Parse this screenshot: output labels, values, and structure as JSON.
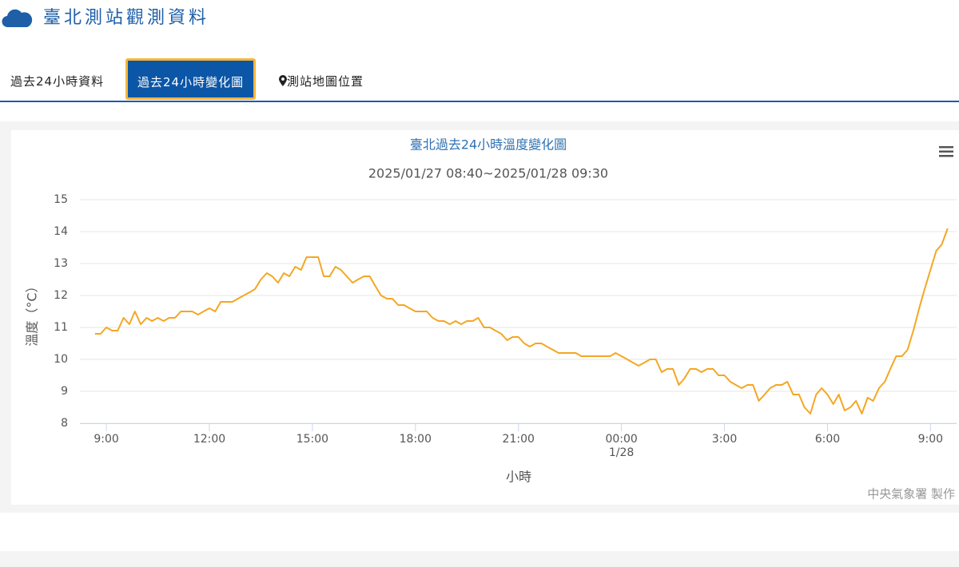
{
  "header": {
    "title": "臺北測站觀測資料"
  },
  "tabs": [
    "過去24小時資料",
    "過去24小時變化圖",
    "測站地圖位置"
  ],
  "chart_data": {
    "type": "line",
    "title": "臺北過去24小時溫度變化圖",
    "subtitle": "2025/01/27 08:40~2025/01/28 09:30",
    "x_label": "小時",
    "y_label": "溫度（°C）",
    "credits": "中央氣象署 製作",
    "color": "#f5a623",
    "grid": true,
    "xlim": [
      8.23,
      33.76
    ],
    "ylim": [
      8,
      15
    ],
    "yticks": [
      8,
      9,
      10,
      11,
      12,
      13,
      14,
      15
    ],
    "xticks": [
      {
        "value": 9,
        "label": "9:00"
      },
      {
        "value": 12,
        "label": "12:00"
      },
      {
        "value": 15,
        "label": "15:00"
      },
      {
        "value": 18,
        "label": "18:00"
      },
      {
        "value": 21,
        "label": "21:00"
      },
      {
        "value": 24,
        "label": "00:00"
      },
      {
        "value": 27,
        "label": "3:00"
      },
      {
        "value": 30,
        "label": "6:00"
      },
      {
        "value": 33,
        "label": "9:00"
      }
    ],
    "x_date_labels": [
      {
        "value": 24,
        "label": "1/28"
      }
    ],
    "x": [
      8.67,
      8.83,
      9,
      9.17,
      9.33,
      9.5,
      9.67,
      9.83,
      10,
      10.17,
      10.33,
      10.5,
      10.67,
      10.83,
      11,
      11.17,
      11.33,
      11.5,
      11.67,
      11.83,
      12,
      12.17,
      12.33,
      12.5,
      12.67,
      12.83,
      13,
      13.17,
      13.33,
      13.5,
      13.67,
      13.83,
      14,
      14.17,
      14.33,
      14.5,
      14.67,
      14.83,
      15,
      15.17,
      15.33,
      15.5,
      15.67,
      15.83,
      16,
      16.17,
      16.33,
      16.5,
      16.67,
      16.83,
      17,
      17.17,
      17.33,
      17.5,
      17.67,
      17.83,
      18,
      18.17,
      18.33,
      18.5,
      18.67,
      18.83,
      19,
      19.17,
      19.33,
      19.5,
      19.67,
      19.83,
      20,
      20.17,
      20.33,
      20.5,
      20.67,
      20.83,
      21,
      21.17,
      21.33,
      21.5,
      21.67,
      21.83,
      22,
      22.17,
      22.33,
      22.5,
      22.67,
      22.83,
      23,
      23.17,
      23.33,
      23.5,
      23.67,
      23.83,
      24,
      24.17,
      24.33,
      24.5,
      24.67,
      24.83,
      25,
      25.17,
      25.33,
      25.5,
      25.67,
      25.83,
      26,
      26.17,
      26.33,
      26.5,
      26.67,
      26.83,
      27,
      27.17,
      27.33,
      27.5,
      27.67,
      27.83,
      28,
      28.17,
      28.33,
      28.5,
      28.67,
      28.83,
      29,
      29.17,
      29.33,
      29.5,
      29.67,
      29.83,
      30,
      30.17,
      30.33,
      30.5,
      30.67,
      30.83,
      31,
      31.17,
      31.33,
      31.5,
      31.67,
      31.83,
      32,
      32.17,
      32.33,
      32.5,
      32.67,
      32.83,
      33,
      33.17,
      33.33,
      33.5
    ],
    "values": [
      10.8,
      10.8,
      11.0,
      10.9,
      10.9,
      11.3,
      11.1,
      11.5,
      11.1,
      11.3,
      11.2,
      11.3,
      11.2,
      11.3,
      11.3,
      11.5,
      11.5,
      11.5,
      11.4,
      11.5,
      11.6,
      11.5,
      11.8,
      11.8,
      11.8,
      11.9,
      12.0,
      12.1,
      12.2,
      12.5,
      12.7,
      12.6,
      12.4,
      12.7,
      12.6,
      12.9,
      12.8,
      13.2,
      13.2,
      13.2,
      12.6,
      12.6,
      12.9,
      12.8,
      12.6,
      12.4,
      12.5,
      12.6,
      12.6,
      12.3,
      12.0,
      11.9,
      11.9,
      11.7,
      11.7,
      11.6,
      11.5,
      11.5,
      11.5,
      11.3,
      11.2,
      11.2,
      11.1,
      11.2,
      11.1,
      11.2,
      11.2,
      11.3,
      11.0,
      11.0,
      10.9,
      10.8,
      10.6,
      10.7,
      10.7,
      10.5,
      10.4,
      10.5,
      10.5,
      10.4,
      10.3,
      10.2,
      10.2,
      10.2,
      10.2,
      10.1,
      10.1,
      10.1,
      10.1,
      10.1,
      10.1,
      10.2,
      10.1,
      10.0,
      9.9,
      9.8,
      9.9,
      10.0,
      10.0,
      9.6,
      9.7,
      9.7,
      9.2,
      9.4,
      9.7,
      9.7,
      9.6,
      9.7,
      9.7,
      9.5,
      9.5,
      9.3,
      9.2,
      9.1,
      9.2,
      9.2,
      8.7,
      8.9,
      9.1,
      9.2,
      9.2,
      9.3,
      8.9,
      8.9,
      8.5,
      8.3,
      8.9,
      9.1,
      8.9,
      8.6,
      8.9,
      8.4,
      8.5,
      8.7,
      8.3,
      8.8,
      8.7,
      9.1,
      9.3,
      9.7,
      10.1,
      10.1,
      10.3,
      10.9,
      11.6,
      12.2,
      12.8,
      13.4,
      13.6,
      14.1
    ]
  }
}
